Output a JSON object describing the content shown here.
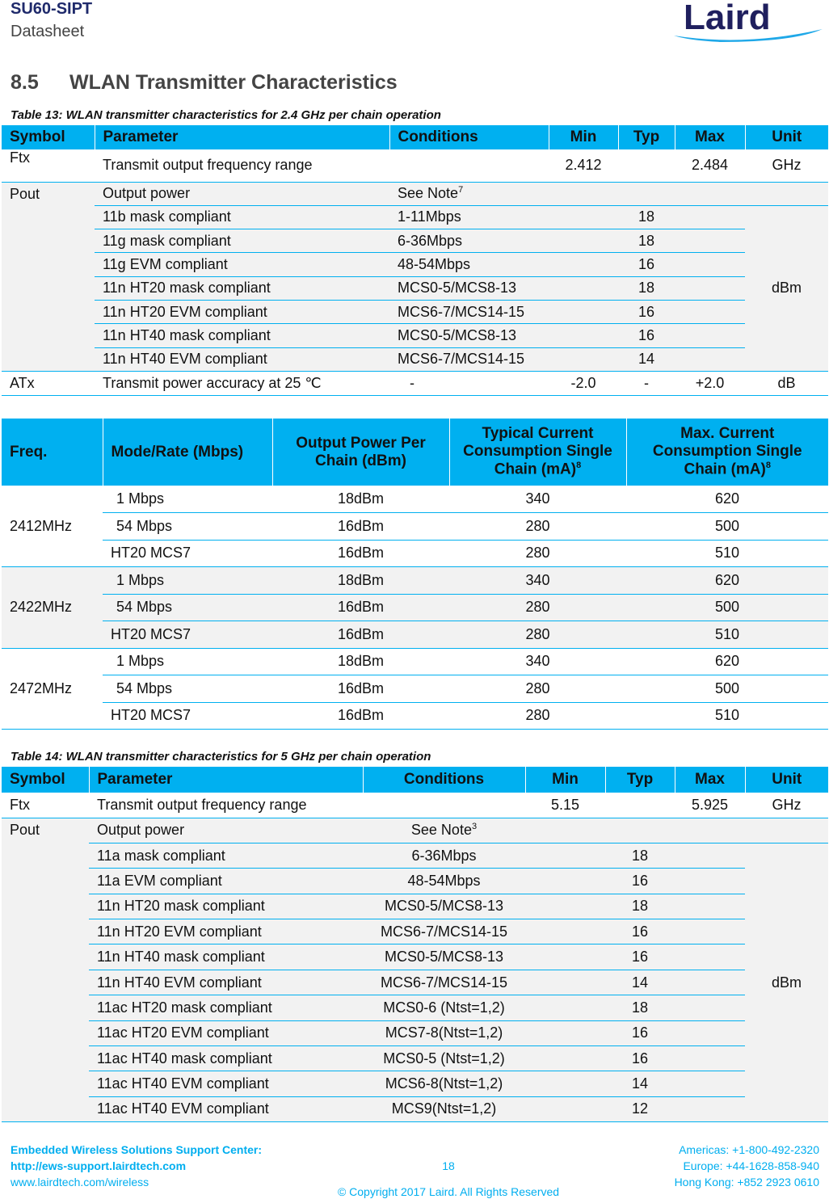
{
  "header": {
    "title": "SU60-SIPT",
    "subtitle": "Datasheet",
    "logo": "Laird"
  },
  "section": {
    "number": "8.5",
    "title": "WLAN Transmitter Characteristics"
  },
  "t13": {
    "caption": "Table 13: WLAN transmitter characteristics for 2.4 GHz per chain operation",
    "headers": [
      "Symbol",
      "Parameter",
      "Conditions",
      "Min",
      "Typ",
      "Max",
      "Unit"
    ],
    "ftx": {
      "symbol": "Ftx",
      "param": "Transmit output frequency range",
      "min": "2.412",
      "max": "2.484",
      "unit": "GHz"
    },
    "pout": {
      "symbol": "Pout",
      "param": "Output power",
      "cond": "See Note",
      "note": "7",
      "unit": "dBm",
      "rows": [
        [
          "11b mask compliant",
          "1-11Mbps",
          "18"
        ],
        [
          "11g mask compliant",
          "6-36Mbps",
          "18"
        ],
        [
          "11g EVM compliant",
          "48-54Mbps",
          "16"
        ],
        [
          "11n HT20 mask compliant",
          "MCS0-5/MCS8-13",
          "18"
        ],
        [
          "11n HT20 EVM compliant",
          "MCS6-7/MCS14-15",
          "16"
        ],
        [
          "11n HT40 mask compliant",
          "MCS0-5/MCS8-13",
          "16"
        ],
        [
          "11n HT40 EVM compliant",
          "MCS6-7/MCS14-15",
          "14"
        ]
      ]
    },
    "atx": {
      "symbol": "ATx",
      "param": "Transmit power accuracy at 25 ℃",
      "cond": "-",
      "min": "-2.0",
      "typ": "-",
      "max": "+2.0",
      "unit": "dB"
    }
  },
  "tcur": {
    "headers": [
      {
        "text": "Freq.",
        "sup": ""
      },
      {
        "text": "Mode/Rate (Mbps)",
        "sup": ""
      },
      {
        "text": "Output Power Per Chain (dBm)",
        "sup": ""
      },
      {
        "text": "Typical Current Consumption Single Chain (mA)",
        "sup": "8"
      },
      {
        "text": "Max. Current Consumption Single Chain (mA)",
        "sup": "8"
      }
    ],
    "groups": [
      {
        "freq": "2412MHz",
        "rows": [
          [
            "1 Mbps",
            "18dBm",
            "340",
            "620"
          ],
          [
            "54 Mbps",
            "16dBm",
            "280",
            "500"
          ],
          [
            "HT20 MCS7",
            "16dBm",
            "280",
            "510"
          ]
        ]
      },
      {
        "freq": "2422MHz",
        "rows": [
          [
            "1 Mbps",
            "18dBm",
            "340",
            "620"
          ],
          [
            "54 Mbps",
            "16dBm",
            "280",
            "500"
          ],
          [
            "HT20 MCS7",
            "16dBm",
            "280",
            "510"
          ]
        ]
      },
      {
        "freq": "2472MHz",
        "rows": [
          [
            "1 Mbps",
            "18dBm",
            "340",
            "620"
          ],
          [
            "54 Mbps",
            "16dBm",
            "280",
            "500"
          ],
          [
            "HT20 MCS7",
            "16dBm",
            "280",
            "510"
          ]
        ]
      }
    ]
  },
  "t14": {
    "caption": "Table 14: WLAN transmitter characteristics for 5 GHz per chain operation",
    "headers": [
      "Symbol",
      "Parameter",
      "Conditions",
      "Min",
      "Typ",
      "Max",
      "Unit"
    ],
    "ftx": {
      "symbol": "Ftx",
      "param": "Transmit output frequency range",
      "min": "5.15",
      "max": "5.925",
      "unit": "GHz"
    },
    "pout": {
      "symbol": "Pout",
      "param": "Output power",
      "cond": "See Note",
      "note": "3",
      "unit": "dBm",
      "rows": [
        [
          "11a mask compliant",
          "6-36Mbps",
          "18"
        ],
        [
          "11a EVM compliant",
          "48-54Mbps",
          "16"
        ],
        [
          "11n HT20 mask compliant",
          "MCS0-5/MCS8-13",
          "18"
        ],
        [
          "11n HT20 EVM compliant",
          "MCS6-7/MCS14-15",
          "16"
        ],
        [
          "11n HT40 mask compliant",
          "MCS0-5/MCS8-13",
          "16"
        ],
        [
          "11n HT40 EVM compliant",
          "MCS6-7/MCS14-15",
          "14"
        ],
        [
          "11ac HT20 mask compliant",
          "MCS0-6 (Ntst=1,2)",
          "18"
        ],
        [
          "11ac HT20 EVM compliant",
          "MCS7-8(Ntst=1,2)",
          "16"
        ],
        [
          "11ac HT40 mask compliant",
          "MCS0-5 (Ntst=1,2)",
          "16"
        ],
        [
          "11ac HT40 EVM compliant",
          "MCS6-8(Ntst=1,2)",
          "14"
        ],
        [
          "11ac HT40 EVM compliant",
          "MCS9(Ntst=1,2)",
          "12"
        ]
      ]
    }
  },
  "footer": {
    "support_title": "Embedded Wireless Solutions Support Center:",
    "support_url": "http://ews-support.lairdtech.com",
    "site": "www.lairdtech.com/wireless",
    "page": "18",
    "copyright": "© Copyright 2017 Laird. All Rights Reserved",
    "americas": "Americas: +1-800-492-2320",
    "europe": "Europe: +44-1628-858-940",
    "hongkong": "Hong Kong: +852 2923 0610"
  }
}
